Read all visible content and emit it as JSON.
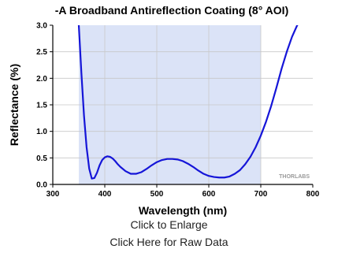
{
  "chart_data": {
    "type": "line",
    "title": "-A Broadband Antireflection Coating (8° AOI)",
    "xlabel": "Wavelength (nm)",
    "ylabel": "Reflectance (%)",
    "xlim": [
      300,
      800
    ],
    "ylim": [
      0,
      3.0
    ],
    "x_ticks": [
      300,
      400,
      500,
      600,
      700,
      800
    ],
    "x_tick_labels": [
      "300",
      "400",
      "500",
      "600",
      "700",
      "800"
    ],
    "y_ticks": [
      0,
      0.5,
      1.0,
      1.5,
      2.0,
      2.5,
      3.0
    ],
    "y_tick_labels": [
      "0.0",
      "0.5",
      "1.0",
      "1.5",
      "2.0",
      "2.5",
      "3.0"
    ],
    "grid": true,
    "highlight_band": {
      "x_start": 350,
      "x_end": 700,
      "color": "#dbe3f7"
    },
    "series": [
      {
        "color": "#1515d8",
        "x": [
          350,
          355,
          360,
          365,
          370,
          375,
          380,
          385,
          390,
          395,
          400,
          405,
          410,
          415,
          420,
          425,
          430,
          440,
          450,
          460,
          470,
          480,
          490,
          500,
          510,
          520,
          530,
          540,
          550,
          560,
          570,
          580,
          590,
          600,
          610,
          620,
          630,
          640,
          650,
          660,
          670,
          680,
          690,
          700,
          710,
          720,
          730,
          740,
          750,
          760,
          770,
          775
        ],
        "values": [
          3.0,
          2.1,
          1.3,
          0.7,
          0.3,
          0.11,
          0.12,
          0.22,
          0.36,
          0.46,
          0.51,
          0.53,
          0.52,
          0.49,
          0.44,
          0.38,
          0.33,
          0.25,
          0.2,
          0.2,
          0.23,
          0.29,
          0.36,
          0.42,
          0.46,
          0.48,
          0.48,
          0.47,
          0.44,
          0.39,
          0.33,
          0.26,
          0.2,
          0.16,
          0.14,
          0.13,
          0.13,
          0.15,
          0.2,
          0.27,
          0.38,
          0.52,
          0.7,
          0.92,
          1.18,
          1.48,
          1.82,
          2.18,
          2.5,
          2.78,
          3.0,
          3.05
        ]
      }
    ],
    "watermark": "THORLABS",
    "colors": {
      "band": "#dbe3f7",
      "line": "#1515d8",
      "grid": "#c8c8c8",
      "axis": "#000000"
    }
  },
  "links": {
    "enlarge": "Click to Enlarge",
    "raw_data": "Click Here for Raw Data"
  }
}
